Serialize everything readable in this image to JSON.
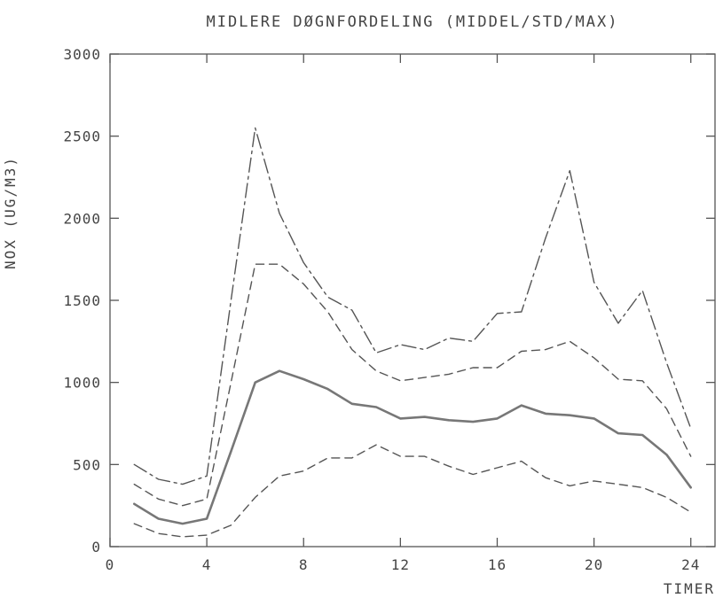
{
  "chart_data": {
    "type": "line",
    "title": "MIDLERE DØGNFORDELING (MIDDEL/STD/MAX)",
    "xlabel": "TIMER",
    "ylabel": "NOX (UG/M3)",
    "xlim": [
      0,
      25
    ],
    "ylim": [
      0,
      3000
    ],
    "x_ticks": [
      0,
      4,
      8,
      12,
      16,
      20,
      24
    ],
    "y_ticks": [
      0,
      500,
      1000,
      1500,
      2000,
      2500,
      3000
    ],
    "grid": false,
    "legend": "none",
    "x": [
      1,
      2,
      3,
      4,
      5,
      6,
      7,
      8,
      9,
      10,
      11,
      12,
      13,
      14,
      15,
      16,
      17,
      18,
      19,
      20,
      21,
      22,
      23,
      24
    ],
    "series": [
      {
        "style": "dash-dot",
        "color": "#555555",
        "values": [
          500,
          410,
          380,
          430,
          1500,
          2550,
          2030,
          1730,
          1520,
          1440,
          1180,
          1230,
          1200,
          1270,
          1250,
          1420,
          1430,
          1880,
          2290,
          1610,
          1360,
          1560,
          1120,
          720
        ]
      },
      {
        "style": "dashed",
        "color": "#555555",
        "values": [
          380,
          290,
          250,
          290,
          1000,
          1720,
          1720,
          1600,
          1430,
          1200,
          1070,
          1010,
          1030,
          1050,
          1090,
          1090,
          1190,
          1200,
          1250,
          1150,
          1020,
          1010,
          840,
          550
        ]
      },
      {
        "style": "solid-thick",
        "color": "#777777",
        "values": [
          260,
          170,
          140,
          170,
          580,
          1000,
          1070,
          1020,
          960,
          870,
          850,
          780,
          790,
          770,
          760,
          780,
          860,
          810,
          800,
          780,
          690,
          680,
          560,
          360
        ]
      },
      {
        "style": "dashed",
        "color": "#555555",
        "values": [
          140,
          80,
          60,
          70,
          130,
          300,
          430,
          460,
          540,
          540,
          620,
          550,
          550,
          490,
          440,
          480,
          520,
          420,
          370,
          400,
          380,
          360,
          300,
          210
        ]
      }
    ]
  }
}
